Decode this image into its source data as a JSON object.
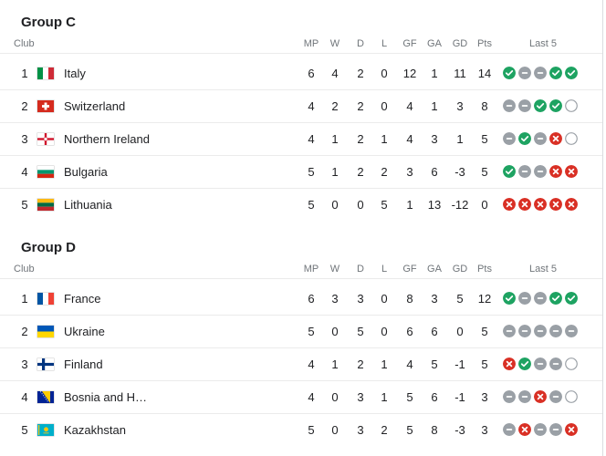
{
  "groups": [
    {
      "title": "Group C",
      "headers": {
        "club": "Club",
        "mp": "MP",
        "w": "W",
        "d": "D",
        "l": "L",
        "gf": "GF",
        "ga": "GA",
        "gd": "GD",
        "pts": "Pts",
        "last5": "Last 5"
      },
      "rows": [
        {
          "pos": "1",
          "flag": "italy-flag",
          "name": "Italy",
          "mp": "6",
          "w": "4",
          "d": "2",
          "l": "0",
          "gf": "12",
          "ga": "1",
          "gd": "11",
          "pts": "14",
          "form": [
            "win",
            "draw",
            "draw",
            "win",
            "win"
          ]
        },
        {
          "pos": "2",
          "flag": "switzerland-flag",
          "name": "Switzerland",
          "mp": "4",
          "w": "2",
          "d": "2",
          "l": "0",
          "gf": "4",
          "ga": "1",
          "gd": "3",
          "pts": "8",
          "form": [
            "draw",
            "draw",
            "win",
            "win",
            "empty"
          ]
        },
        {
          "pos": "3",
          "flag": "northern-ireland-flag",
          "name": "Northern Ireland",
          "mp": "4",
          "w": "1",
          "d": "2",
          "l": "1",
          "gf": "4",
          "ga": "3",
          "gd": "1",
          "pts": "5",
          "form": [
            "draw",
            "win",
            "draw",
            "loss",
            "empty"
          ]
        },
        {
          "pos": "4",
          "flag": "bulgaria-flag",
          "name": "Bulgaria",
          "mp": "5",
          "w": "1",
          "d": "2",
          "l": "2",
          "gf": "3",
          "ga": "6",
          "gd": "-3",
          "pts": "5",
          "form": [
            "win",
            "draw",
            "draw",
            "loss",
            "loss"
          ]
        },
        {
          "pos": "5",
          "flag": "lithuania-flag",
          "name": "Lithuania",
          "mp": "5",
          "w": "0",
          "d": "0",
          "l": "5",
          "gf": "1",
          "ga": "13",
          "gd": "-12",
          "pts": "0",
          "form": [
            "loss",
            "loss",
            "loss",
            "loss",
            "loss"
          ]
        }
      ]
    },
    {
      "title": "Group D",
      "headers": {
        "club": "Club",
        "mp": "MP",
        "w": "W",
        "d": "D",
        "l": "L",
        "gf": "GF",
        "ga": "GA",
        "gd": "GD",
        "pts": "Pts",
        "last5": "Last 5"
      },
      "rows": [
        {
          "pos": "1",
          "flag": "france-flag",
          "name": "France",
          "mp": "6",
          "w": "3",
          "d": "3",
          "l": "0",
          "gf": "8",
          "ga": "3",
          "gd": "5",
          "pts": "12",
          "form": [
            "win",
            "draw",
            "draw",
            "win",
            "win"
          ]
        },
        {
          "pos": "2",
          "flag": "ukraine-flag",
          "name": "Ukraine",
          "mp": "5",
          "w": "0",
          "d": "5",
          "l": "0",
          "gf": "6",
          "ga": "6",
          "gd": "0",
          "pts": "5",
          "form": [
            "draw",
            "draw",
            "draw",
            "draw",
            "draw"
          ]
        },
        {
          "pos": "3",
          "flag": "finland-flag",
          "name": "Finland",
          "mp": "4",
          "w": "1",
          "d": "2",
          "l": "1",
          "gf": "4",
          "ga": "5",
          "gd": "-1",
          "pts": "5",
          "form": [
            "loss",
            "win",
            "draw",
            "draw",
            "empty"
          ]
        },
        {
          "pos": "4",
          "flag": "bosnia-flag",
          "name": "Bosnia and H…",
          "mp": "4",
          "w": "0",
          "d": "3",
          "l": "1",
          "gf": "5",
          "ga": "6",
          "gd": "-1",
          "pts": "3",
          "form": [
            "draw",
            "draw",
            "loss",
            "draw",
            "empty"
          ]
        },
        {
          "pos": "5",
          "flag": "kazakhstan-flag",
          "name": "Kazakhstan",
          "mp": "5",
          "w": "0",
          "d": "3",
          "l": "2",
          "gf": "5",
          "ga": "8",
          "gd": "-3",
          "pts": "3",
          "form": [
            "draw",
            "loss",
            "draw",
            "draw",
            "loss"
          ]
        }
      ]
    }
  ],
  "colors": {
    "win": "#1ea362",
    "draw": "#9aa0a6",
    "loss": "#d93025",
    "empty_border": "#9aa0a6"
  }
}
